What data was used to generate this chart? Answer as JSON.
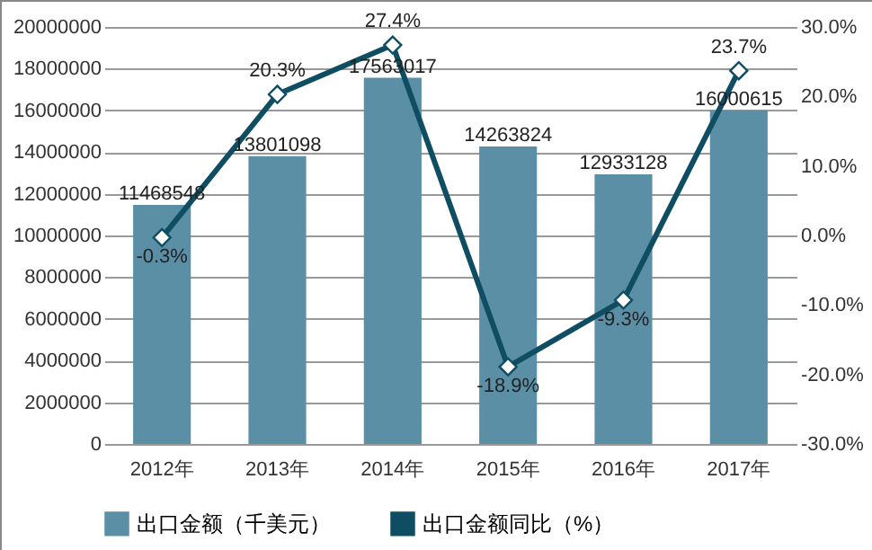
{
  "chart_data": {
    "type": "bar",
    "categories": [
      "2012年",
      "2013年",
      "2014年",
      "2015年",
      "2016年",
      "2017年"
    ],
    "series": [
      {
        "name": "出口金额（千美元）",
        "color": "#5b8fa6",
        "values": [
          11468548,
          13801098,
          17563017,
          14263824,
          12933128,
          16000615
        ],
        "value_labels": [
          "11468548",
          "13801098",
          "17563017",
          "14263824",
          "12933128",
          "16000615"
        ]
      },
      {
        "name": "出口金额同比（%）",
        "type": "line",
        "axis": "y2",
        "color": "#0f4d63",
        "marker": "diamond",
        "values": [
          -0.3,
          20.3,
          27.4,
          -18.9,
          -9.3,
          23.7
        ],
        "value_labels": [
          "-0.3%",
          "20.3%",
          "27.4%",
          "-18.9%",
          "-9.3%",
          "23.7%"
        ]
      }
    ],
    "ylim": [
      0,
      20000000
    ],
    "yticks": [
      0,
      2000000,
      4000000,
      6000000,
      8000000,
      10000000,
      12000000,
      14000000,
      16000000,
      18000000,
      20000000
    ],
    "y2lim": [
      -30,
      30
    ],
    "y2ticks": [
      {
        "value": -30,
        "label": "-30.0%"
      },
      {
        "value": -20,
        "label": "-20.0%"
      },
      {
        "value": -10,
        "label": "-10.0%"
      },
      {
        "value": 0,
        "label": "0.0%"
      },
      {
        "value": 10,
        "label": "10.0%"
      },
      {
        "value": 20,
        "label": "20.0%"
      },
      {
        "value": 30,
        "label": "30.0%"
      }
    ],
    "grid": "y",
    "legend": "bottom"
  }
}
